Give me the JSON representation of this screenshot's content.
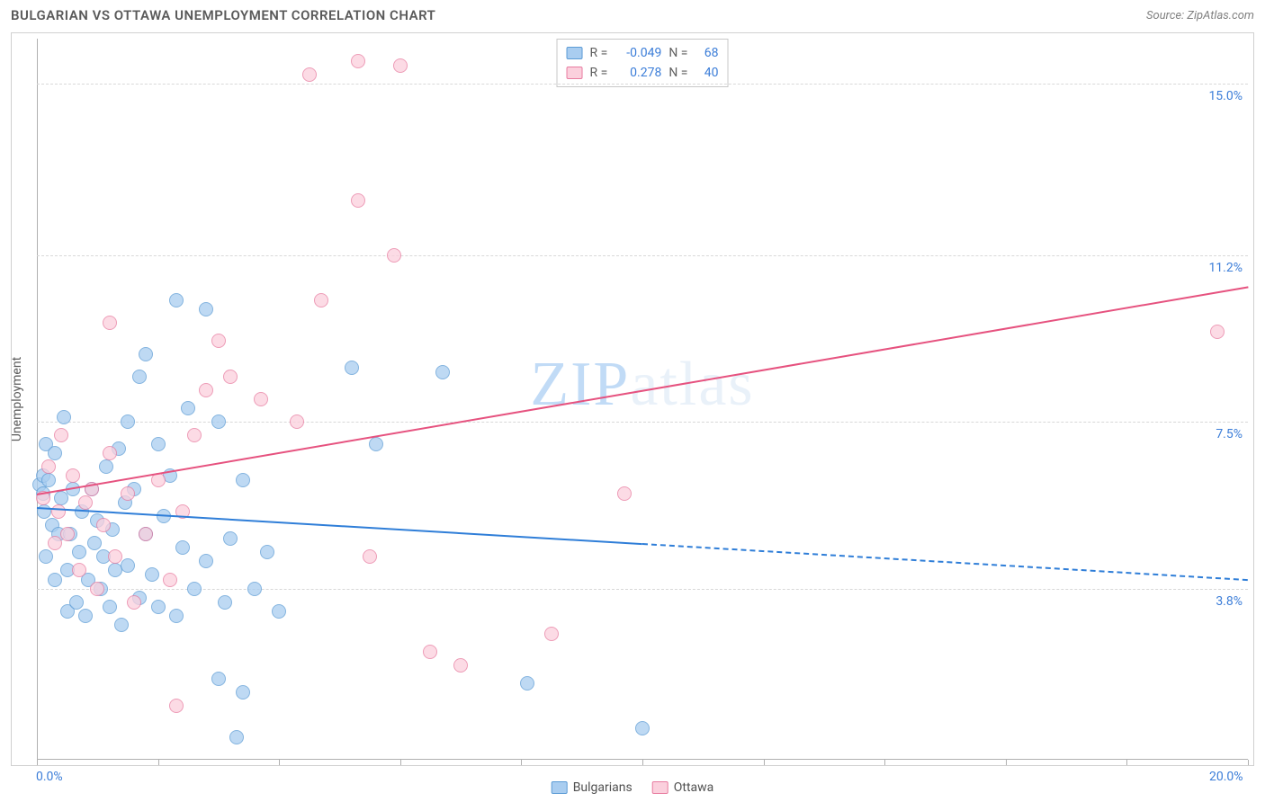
{
  "title": "BULGARIAN VS OTTAWA UNEMPLOYMENT CORRELATION CHART",
  "source_label": "Source: ZipAtlas.com",
  "watermark": {
    "zip": "ZIP",
    "atlas": "atlas"
  },
  "ylabel": "Unemployment",
  "chart": {
    "type": "scatter",
    "background_color": "#ffffff",
    "grid_color": "#d8d8d8",
    "border_color": "#d0d0d0",
    "xlim": [
      0,
      20
    ],
    "ylim": [
      0,
      16
    ],
    "x_ticks_count": 11,
    "x_tick_labels": {
      "start": "0.0%",
      "end": "20.0%"
    },
    "y_gridlines": [
      {
        "value": 3.8,
        "label": "3.8%"
      },
      {
        "value": 7.5,
        "label": "7.5%"
      },
      {
        "value": 11.2,
        "label": "11.2%"
      },
      {
        "value": 15.0,
        "label": "15.0%"
      }
    ],
    "series": [
      {
        "key": "bulgarians",
        "name": "Bulgarians",
        "fill_color": "#a9cdf0",
        "stroke_color": "#5b9bd5",
        "line_color": "#2f7ed8",
        "R": "-0.049",
        "N": "68",
        "trend": {
          "x0": 0,
          "y0": 5.6,
          "x1": 20,
          "y1": 4.0,
          "solid_until_x": 10
        },
        "points": [
          [
            0.05,
            6.1
          ],
          [
            0.1,
            5.9
          ],
          [
            0.1,
            6.3
          ],
          [
            0.12,
            5.5
          ],
          [
            0.15,
            7.0
          ],
          [
            0.15,
            4.5
          ],
          [
            0.2,
            6.2
          ],
          [
            0.25,
            5.2
          ],
          [
            0.3,
            6.8
          ],
          [
            0.3,
            4.0
          ],
          [
            0.35,
            5.0
          ],
          [
            0.4,
            5.8
          ],
          [
            0.45,
            7.6
          ],
          [
            0.5,
            3.3
          ],
          [
            0.5,
            4.2
          ],
          [
            0.55,
            5.0
          ],
          [
            0.6,
            6.0
          ],
          [
            0.65,
            3.5
          ],
          [
            0.7,
            4.6
          ],
          [
            0.75,
            5.5
          ],
          [
            0.8,
            3.2
          ],
          [
            0.85,
            4.0
          ],
          [
            0.9,
            6.0
          ],
          [
            0.95,
            4.8
          ],
          [
            1.0,
            5.3
          ],
          [
            1.05,
            3.8
          ],
          [
            1.1,
            4.5
          ],
          [
            1.15,
            6.5
          ],
          [
            1.2,
            3.4
          ],
          [
            1.25,
            5.1
          ],
          [
            1.3,
            4.2
          ],
          [
            1.35,
            6.9
          ],
          [
            1.4,
            3.0
          ],
          [
            1.45,
            5.7
          ],
          [
            1.5,
            4.3
          ],
          [
            1.6,
            6.0
          ],
          [
            1.7,
            3.6
          ],
          [
            1.8,
            5.0
          ],
          [
            1.9,
            4.1
          ],
          [
            2.0,
            7.0
          ],
          [
            2.0,
            3.4
          ],
          [
            2.1,
            5.4
          ],
          [
            2.2,
            6.3
          ],
          [
            2.3,
            3.2
          ],
          [
            2.4,
            4.7
          ],
          [
            2.5,
            7.8
          ],
          [
            2.6,
            3.8
          ],
          [
            2.8,
            4.4
          ],
          [
            3.0,
            7.5
          ],
          [
            3.1,
            3.5
          ],
          [
            3.2,
            4.9
          ],
          [
            3.3,
            0.5
          ],
          [
            3.4,
            6.2
          ],
          [
            3.6,
            3.8
          ],
          [
            3.8,
            4.6
          ],
          [
            4.0,
            3.3
          ],
          [
            1.5,
            7.5
          ],
          [
            1.7,
            8.5
          ],
          [
            2.3,
            10.2
          ],
          [
            2.8,
            10.0
          ],
          [
            1.8,
            9.0
          ],
          [
            5.2,
            8.7
          ],
          [
            5.6,
            7.0
          ],
          [
            6.7,
            8.6
          ],
          [
            3.0,
            1.8
          ],
          [
            3.4,
            1.5
          ],
          [
            8.1,
            1.7
          ],
          [
            10.0,
            0.7
          ]
        ]
      },
      {
        "key": "ottawa",
        "name": "Ottawa",
        "fill_color": "#fbd0dd",
        "stroke_color": "#e87ca0",
        "line_color": "#e6527f",
        "R": "0.278",
        "N": "40",
        "trend": {
          "x0": 0,
          "y0": 5.9,
          "x1": 20,
          "y1": 10.5,
          "solid_until_x": 20
        },
        "points": [
          [
            0.1,
            5.8
          ],
          [
            0.2,
            6.5
          ],
          [
            0.3,
            4.8
          ],
          [
            0.35,
            5.5
          ],
          [
            0.4,
            7.2
          ],
          [
            0.5,
            5.0
          ],
          [
            0.6,
            6.3
          ],
          [
            0.7,
            4.2
          ],
          [
            0.8,
            5.7
          ],
          [
            0.9,
            6.0
          ],
          [
            1.0,
            3.8
          ],
          [
            1.1,
            5.2
          ],
          [
            1.2,
            6.8
          ],
          [
            1.3,
            4.5
          ],
          [
            1.5,
            5.9
          ],
          [
            1.6,
            3.5
          ],
          [
            1.8,
            5.0
          ],
          [
            2.0,
            6.2
          ],
          [
            2.2,
            4.0
          ],
          [
            2.4,
            5.5
          ],
          [
            2.6,
            7.2
          ],
          [
            2.8,
            8.2
          ],
          [
            3.0,
            9.3
          ],
          [
            3.2,
            8.5
          ],
          [
            1.2,
            9.7
          ],
          [
            3.7,
            8.0
          ],
          [
            4.3,
            7.5
          ],
          [
            4.7,
            10.2
          ],
          [
            4.5,
            15.2
          ],
          [
            5.3,
            15.5
          ],
          [
            6.0,
            15.4
          ],
          [
            5.3,
            12.4
          ],
          [
            5.9,
            11.2
          ],
          [
            5.5,
            4.5
          ],
          [
            7.0,
            2.1
          ],
          [
            8.5,
            2.8
          ],
          [
            6.5,
            2.4
          ],
          [
            2.3,
            1.2
          ],
          [
            9.7,
            5.9
          ],
          [
            19.5,
            9.5
          ]
        ]
      }
    ]
  },
  "legend_stats": {
    "r_label": "R =",
    "n_label": "N ="
  },
  "bottom_legend": {
    "items": [
      "Bulgarians",
      "Ottawa"
    ]
  },
  "styling": {
    "title_color": "#5a5a5a",
    "title_fontsize": 15,
    "source_color": "#808080",
    "source_fontsize": 13,
    "axis_label_color": "#3b7dd8",
    "axis_label_fontsize": 14,
    "point_diameter": 16,
    "point_opacity": 0.75,
    "line_width": 2
  }
}
